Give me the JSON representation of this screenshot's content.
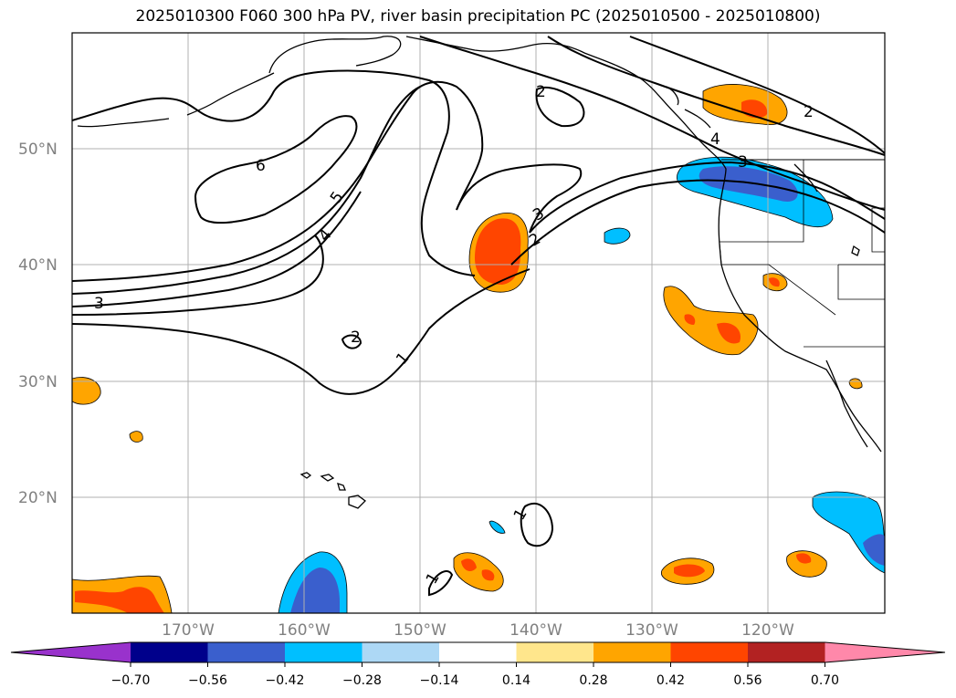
{
  "title": "2025010300 F060 300 hPa PV, river basin precipitation PC (2025010500 - 2025010800)",
  "latitude_labels": [
    "50°N",
    "40°N",
    "30°N",
    "20°N"
  ],
  "longitude_labels": [
    "170°W",
    "160°W",
    "150°W",
    "140°W",
    "130°W",
    "120°W"
  ],
  "contour_labels": [
    "6",
    "5",
    "4",
    "3",
    "3",
    "2",
    "2",
    "2",
    "2",
    "1",
    "1",
    "1",
    "2",
    "4",
    "3"
  ],
  "colorbar": {
    "tick_labels": [
      "−0.70",
      "−0.56",
      "−0.42",
      "−0.28",
      "−0.14",
      "0.14",
      "0.28",
      "0.42",
      "0.56",
      "0.70"
    ],
    "colors": [
      "#9932cc",
      "#00008b",
      "#3a5fcd",
      "#00bfff",
      "#add8f5",
      "#ffffff",
      "#ffe68c",
      "#ffa500",
      "#ff4500",
      "#b22222",
      "#ff88aa"
    ]
  },
  "colors": {
    "gridline": "#b0b0b0",
    "coastline": "#000000",
    "axis_text": "#808080"
  }
}
